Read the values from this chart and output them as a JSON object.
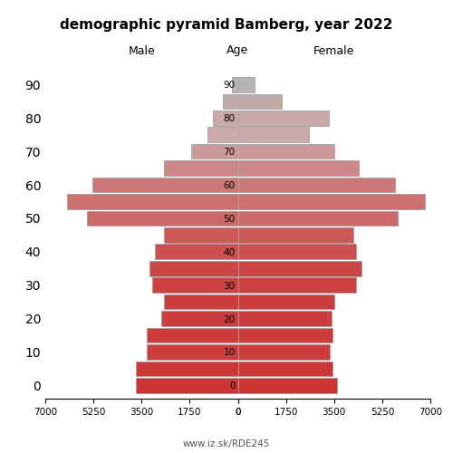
{
  "title": "demographic pyramid Bamberg, year 2022",
  "label_male": "Male",
  "label_female": "Female",
  "label_age": "Age",
  "footer": "www.iz.sk/RDE245",
  "age_groups": [
    0,
    5,
    10,
    15,
    20,
    25,
    30,
    35,
    40,
    45,
    50,
    55,
    60,
    65,
    70,
    75,
    80,
    85,
    90
  ],
  "age_tick_labels": [
    "0",
    "",
    "10",
    "",
    "20",
    "",
    "30",
    "",
    "40",
    "",
    "50",
    "",
    "60",
    "",
    "70",
    "",
    "80",
    "",
    "90"
  ],
  "male": [
    3700,
    3700,
    3300,
    3300,
    2800,
    2700,
    3100,
    3200,
    3000,
    2700,
    5500,
    6200,
    5300,
    2700,
    1700,
    1100,
    900,
    550,
    200
  ],
  "female": [
    3600,
    3450,
    3350,
    3450,
    3400,
    3500,
    4300,
    4500,
    4300,
    4200,
    5800,
    6800,
    5700,
    4400,
    3500,
    2600,
    3300,
    1600,
    600
  ],
  "colors": {
    "0": "#cc3535",
    "5": "#cc3838",
    "10": "#cc3c3c",
    "15": "#cd3b3b",
    "20": "#cd3c3c",
    "25": "#cd3c3c",
    "30": "#cc4040",
    "35": "#cc4646",
    "40": "#cc5050",
    "45": "#cc5858",
    "50": "#cc6868",
    "55": "#cc7070",
    "60": "#cc7878",
    "65": "#cc8888",
    "70": "#cc9999",
    "75": "#ccaaaa",
    "80": "#c8a8a8",
    "85": "#bfaaaa",
    "90": "#b5b5b5"
  },
  "xlim": 7000,
  "xticks": [
    0,
    1750,
    3500,
    5250,
    7000
  ],
  "bar_edge_color": "#999999",
  "bar_linewidth": 0.5,
  "bar_height": 4.5
}
